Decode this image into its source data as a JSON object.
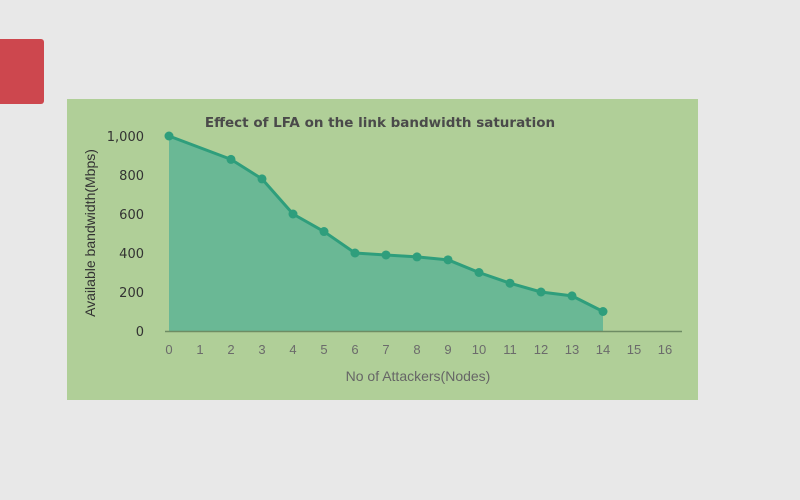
{
  "colors": {
    "page_background": "#e8e8e8",
    "accent_tab": "#cd474e",
    "panel_background": "#b0cf98",
    "area_fill": "#6ab895",
    "line": "#2f9e7c",
    "axis": "#6e8c64"
  },
  "chart_data": {
    "type": "area",
    "title": "Effect of LFA on the link bandwidth saturation",
    "xlabel": "No of Attackers(Nodes)",
    "ylabel": "Available bandwidth(Mbps)",
    "x_ticks": [
      "0",
      "1",
      "2",
      "3",
      "4",
      "5",
      "6",
      "7",
      "8",
      "9",
      "10",
      "11",
      "12",
      "13",
      "14",
      "15",
      "16"
    ],
    "y_ticks": [
      "0",
      "200",
      "400",
      "600",
      "800",
      "1,000"
    ],
    "xlim": [
      0,
      16
    ],
    "ylim": [
      0,
      1000
    ],
    "grid": false,
    "series": [
      {
        "x": [
          0,
          2,
          3,
          4,
          5,
          6,
          7,
          8,
          9,
          10,
          11,
          12,
          13,
          14
        ],
        "values": [
          1000,
          880,
          780,
          600,
          510,
          400,
          390,
          380,
          365,
          300,
          245,
          200,
          180,
          100
        ]
      }
    ]
  }
}
